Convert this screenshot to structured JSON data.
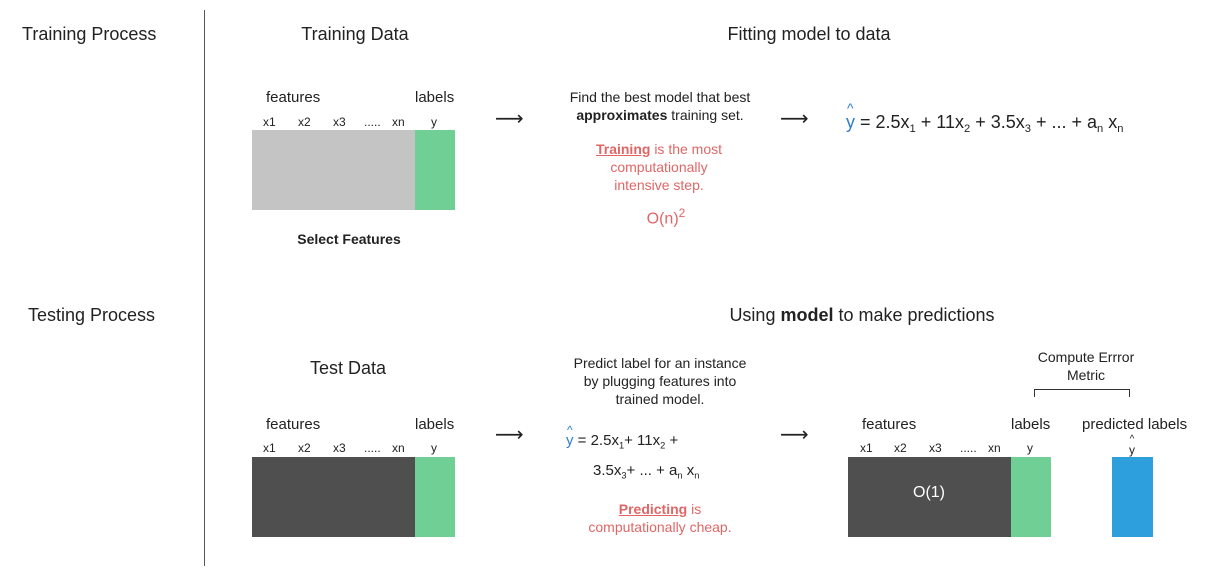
{
  "sections": {
    "training_title": "Training Process",
    "testing_title": "Testing Process"
  },
  "training": {
    "data_title": "Training Data",
    "fit_title": "Fitting model to data",
    "features_label": "features",
    "labels_label": "labels",
    "columns": [
      "x1",
      "x2",
      "x3",
      ".....",
      "xn"
    ],
    "label_column": "y",
    "select_features": "Select Features",
    "desc_line1": "Find the best model that best",
    "desc_bold": "approximates",
    "desc_line2_rest": " training set.",
    "note_bold": "Training",
    "note_line1_rest": " is the most",
    "note_line2": "computationally",
    "note_line3": "intensive step.",
    "complexity_base": "O(n)",
    "complexity_exp": "2",
    "equation": {
      "hat": "^",
      "y": "y",
      "t1_coef": " = 2.5x",
      "t1_sub": "1",
      "t2_coef": "+ 11x",
      "t2_sub": "2",
      "t3_coef": "+ 3.5x",
      "t3_sub": "3",
      "tail": "+ ... + a",
      "tail_sub": "n",
      "tail_x": " x",
      "tail_x_sub": "n"
    }
  },
  "testing": {
    "data_title": "Test Data",
    "predict_title_pre": "Using ",
    "predict_title_bold": "model",
    "predict_title_post": " to make predictions",
    "features_label": "features",
    "labels_label": "labels",
    "columns": [
      "x1",
      "x2",
      "x3",
      ".....",
      "xn"
    ],
    "label_column": "y",
    "desc_line1": "Predict label for an instance",
    "desc_line2": "by plugging features into",
    "desc_line3": "trained model.",
    "note_bold": "Predicting",
    "note_line1_rest": " is",
    "note_line2": "computationally cheap.",
    "equation": {
      "hat": "^",
      "y": "y",
      "l1a": " = 2.5x",
      "l1a_sub": "1",
      "l1b": "+ 11x",
      "l1b_sub": "2",
      "l1c": " +",
      "l2a": "3.5x",
      "l2a_sub": "3",
      "l2b": "+ ... + a",
      "l2b_sub": "n",
      "l2c": " x",
      "l2c_sub": "n"
    },
    "result": {
      "compute_line1": "Compute Errror",
      "compute_line2": "Metric",
      "features_label": "features",
      "labels_label": "labels",
      "predicted_label": "predicted labels",
      "columns": [
        "x1",
        "x2",
        "x3",
        ".....",
        "xn"
      ],
      "label_column": "y",
      "pred_hat": "^",
      "pred_column": "y",
      "complexity": "O(1)"
    }
  },
  "arrow_glyph": "⟶",
  "colors": {
    "feature_block_training": "#c4c4c4",
    "feature_block_testing": "#4f4f4f",
    "label_block": "#6fcf94",
    "predicted_block": "#2d9fdc",
    "highlight_red": "#e06666",
    "hat_blue": "#2d7dd2"
  }
}
